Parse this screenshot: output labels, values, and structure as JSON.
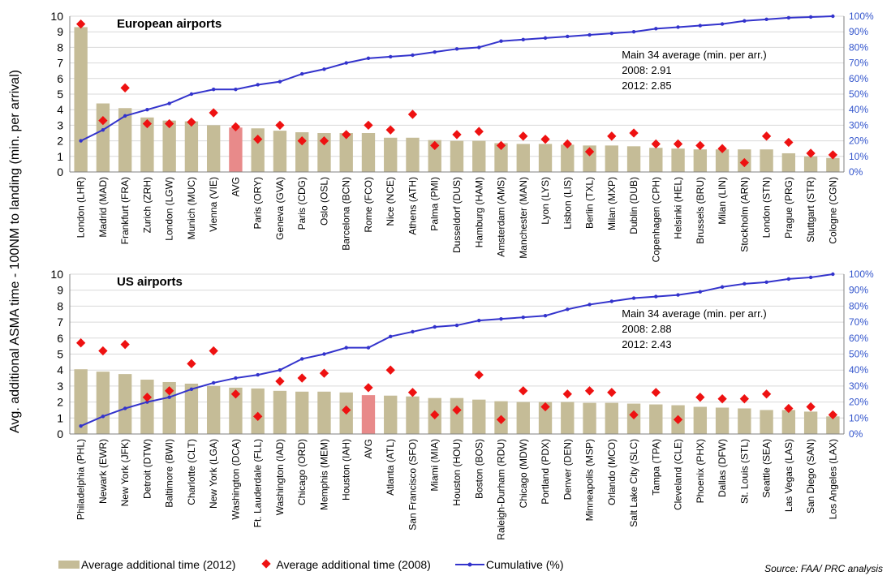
{
  "ylabel": "Avg. additional ASMA time - 100NM to landing (min. per arrival)",
  "legend": {
    "bar_2012": "Average additional time (2012)",
    "dot_2008": "Average additional time (2008)",
    "cumulative": "Cumulative (%)"
  },
  "source": "Source: FAA/ PRC analysis",
  "colors": {
    "bar": "#c5bc97",
    "avg_bar": "#e88a8a",
    "dot": "#ee1111",
    "line": "#3333cc",
    "right_axis": "#3355cc"
  },
  "chart_data": [
    {
      "type": "bar",
      "title": "European airports",
      "note": {
        "line1": "Main 34 average (min. per arr.)",
        "line2": "2008:  2.91",
        "line3": "2012:  2.85"
      },
      "ylim": [
        0,
        10
      ],
      "y2lim": [
        0,
        100
      ],
      "yticks": [
        "0",
        "1",
        "2",
        "3",
        "4",
        "5",
        "6",
        "7",
        "8",
        "9",
        "10"
      ],
      "y2ticks": [
        "0%",
        "10%",
        "20%",
        "30%",
        "40%",
        "50%",
        "60%",
        "70%",
        "80%",
        "90%",
        "100%"
      ],
      "categories": [
        "London (LHR)",
        "Madrid (MAD)",
        "Frankfurt (FRA)",
        "Zurich (ZRH)",
        "London (LGW)",
        "Munich (MUC)",
        "Vienna (VIE)",
        "AVG",
        "Paris (ORY)",
        "Geneva (GVA)",
        "Paris (CDG)",
        "Oslo (OSL)",
        "Barcelona (BCN)",
        "Rome (FCO)",
        "Nice (NCE)",
        "Athens (ATH)",
        "Palma (PMI)",
        "Dusseldorf (DUS)",
        "Hamburg (HAM)",
        "Amsterdam (AMS)",
        "Manchester (MAN)",
        "Lyon (LYS)",
        "Lisbon (LIS)",
        "Berlin (TXL)",
        "Milan (MXP)",
        "Dublin (DUB)",
        "Copenhagen (CPH)",
        "Helsinki (HEL)",
        "Brussels (BRU)",
        "Milan (LIN)",
        "Stockholm (ARN)",
        "London (STN)",
        "Prague (PRG)",
        "Stuttgart (STR)",
        "Cologne (CGN)"
      ],
      "series": [
        {
          "name": "Average additional time (2012)",
          "values": [
            9.3,
            4.4,
            4.1,
            3.5,
            3.3,
            3.25,
            3.0,
            2.85,
            2.8,
            2.65,
            2.55,
            2.5,
            2.5,
            2.5,
            2.2,
            2.2,
            2.05,
            2.0,
            2.0,
            1.85,
            1.8,
            1.8,
            1.75,
            1.7,
            1.7,
            1.65,
            1.55,
            1.5,
            1.45,
            1.45,
            1.45,
            1.45,
            1.2,
            1.0,
            0.9
          ]
        },
        {
          "name": "Average additional time (2008)",
          "values": [
            9.5,
            3.3,
            5.4,
            3.1,
            3.1,
            3.2,
            3.8,
            2.9,
            2.1,
            3.0,
            2.0,
            2.0,
            2.4,
            3.0,
            2.7,
            3.7,
            1.7,
            2.4,
            2.6,
            1.7,
            2.3,
            2.1,
            1.8,
            1.3,
            2.3,
            2.5,
            1.8,
            1.8,
            1.7,
            1.5,
            0.6,
            2.3,
            1.9,
            1.2,
            1.1
          ]
        },
        {
          "name": "Cumulative (%)",
          "values": [
            20,
            27,
            36,
            40,
            44,
            50,
            53,
            53,
            56,
            58,
            63,
            66,
            70,
            73,
            74,
            75,
            77,
            79,
            80,
            84,
            85,
            86,
            87,
            88,
            89,
            90,
            92,
            93,
            94,
            95,
            97,
            98,
            99,
            99.5,
            100
          ]
        }
      ]
    },
    {
      "type": "bar",
      "title": "US airports",
      "note": {
        "line1": "Main 34 average (min. per arr.)",
        "line2": "2008:  2.88",
        "line3": "2012:  2.43"
      },
      "ylim": [
        0,
        10
      ],
      "y2lim": [
        0,
        100
      ],
      "yticks": [
        "0",
        "1",
        "2",
        "3",
        "4",
        "5",
        "6",
        "7",
        "8",
        "9",
        "10"
      ],
      "y2ticks": [
        "0%",
        "10%",
        "20%",
        "30%",
        "40%",
        "50%",
        "60%",
        "70%",
        "80%",
        "90%",
        "100%"
      ],
      "categories": [
        "Philadelphia (PHL)",
        "Newark (EWR)",
        "New York (JFK)",
        "Detroit (DTW)",
        "Baltimore (BWI)",
        "Charlotte (CLT)",
        "New York (LGA)",
        "Washington (DCA)",
        "Ft. Lauderdale (FLL)",
        "Washington (IAD)",
        "Chicago (ORD)",
        "Memphis (MEM)",
        "Houston (IAH)",
        "AVG",
        "Atlanta (ATL)",
        "San Francisco (SFO)",
        "Miami (MIA)",
        "Houston (HOU)",
        "Boston (BOS)",
        "Raleigh-Durham (RDU)",
        "Chicago (MDW)",
        "Portland (PDX)",
        "Denver (DEN)",
        "Minneapolis (MSP)",
        "Orlando (MCO)",
        "Salt Lake City (SLC)",
        "Tampa (TPA)",
        "Cleveland (CLE)",
        "Phoenix (PHX)",
        "Dallas (DFW)",
        "St. Louis (STL)",
        "Seattle (SEA)",
        "Las Vegas (LAS)",
        "San Diego (SAN)",
        "Los Angeles (LAX)"
      ],
      "series": [
        {
          "name": "Average additional time (2012)",
          "values": [
            4.05,
            3.9,
            3.75,
            3.4,
            3.25,
            3.15,
            3.0,
            2.9,
            2.85,
            2.7,
            2.65,
            2.65,
            2.6,
            2.43,
            2.4,
            2.35,
            2.25,
            2.25,
            2.15,
            2.05,
            2.0,
            2.0,
            2.0,
            1.95,
            1.95,
            1.9,
            1.85,
            1.8,
            1.7,
            1.65,
            1.6,
            1.5,
            1.5,
            1.4,
            1.1
          ]
        },
        {
          "name": "Average additional time (2008)",
          "values": [
            5.7,
            5.2,
            5.6,
            2.3,
            2.7,
            4.4,
            5.2,
            2.5,
            1.1,
            3.3,
            3.5,
            3.8,
            1.5,
            2.9,
            4.0,
            2.6,
            1.2,
            1.5,
            3.7,
            0.9,
            2.7,
            1.7,
            2.5,
            2.7,
            2.6,
            1.2,
            2.6,
            0.9,
            2.3,
            2.2,
            2.2,
            2.5,
            1.6,
            1.7,
            1.2
          ]
        },
        {
          "name": "Cumulative (%)",
          "values": [
            5,
            11,
            16,
            20,
            23,
            28,
            32,
            35,
            37,
            40,
            47,
            50,
            54,
            54,
            61,
            64,
            67,
            68,
            71,
            72,
            73,
            74,
            78,
            81,
            83,
            85,
            86,
            87,
            89,
            92,
            94,
            95,
            97,
            98,
            100
          ]
        }
      ]
    }
  ]
}
